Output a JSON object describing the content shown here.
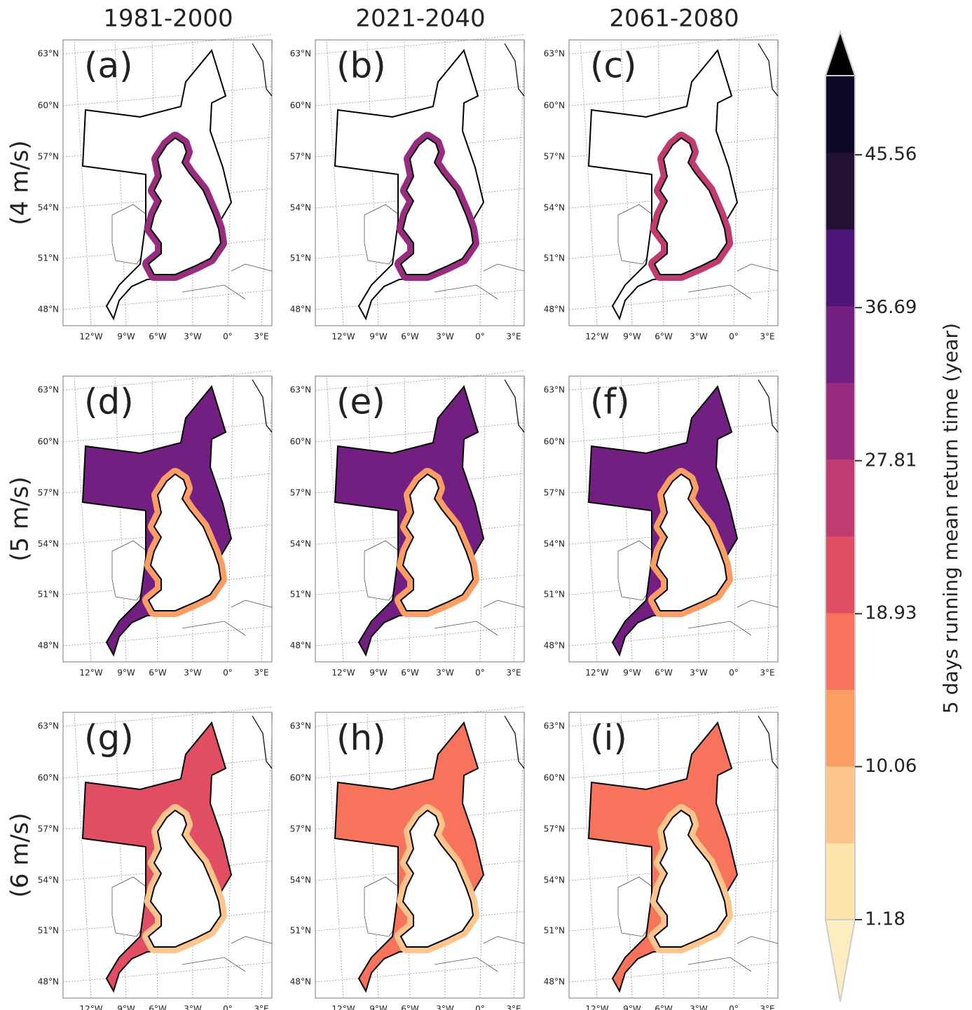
{
  "column_titles": [
    "1981-2000",
    "2021-2040",
    "2061-2080"
  ],
  "row_labels": [
    "(4 m/s)",
    "(5 m/s)",
    "(6 m/s)"
  ],
  "panels": [
    {
      "label": "(a)",
      "fill": "#ffffff",
      "coast": "#982d80"
    },
    {
      "label": "(b)",
      "fill": "#ffffff",
      "coast": "#982d80"
    },
    {
      "label": "(c)",
      "fill": "#ffffff",
      "coast": "#bf3b70"
    },
    {
      "label": "(d)",
      "fill": "#721f81",
      "coast": "#fb9e65"
    },
    {
      "label": "(e)",
      "fill": "#721f81",
      "coast": "#fb9e65"
    },
    {
      "label": "(f)",
      "fill": "#721f81",
      "coast": "#fb9e65"
    },
    {
      "label": "(g)",
      "fill": "#e14e63",
      "coast": "#fdc48b"
    },
    {
      "label": "(h)",
      "fill": "#f7735c",
      "coast": "#fdc48b"
    },
    {
      "label": "(i)",
      "fill": "#f7735c",
      "coast": "#fdc48b"
    }
  ],
  "lat_labels": [
    "63°N",
    "60°N",
    "57°N",
    "54°N",
    "51°N",
    "48°N"
  ],
  "lon_labels": [
    "12°W",
    "9°W",
    "6°W",
    "3°W",
    "0°",
    "3°E"
  ],
  "colorbar": {
    "label": "5 days running mean return time (year)",
    "ticks": [
      1.18,
      10.06,
      18.93,
      27.81,
      36.69,
      45.56
    ],
    "lim": [
      1.18,
      45.56
    ],
    "colors": [
      "#fde5ad",
      "#fdc48b",
      "#fb9e65",
      "#f7735c",
      "#e14e63",
      "#bf3b70",
      "#982d80",
      "#721f81",
      "#4e1478",
      "#251033",
      "#0c0826"
    ],
    "extend_colors": [
      "#fdedc0",
      "#000000"
    ]
  }
}
